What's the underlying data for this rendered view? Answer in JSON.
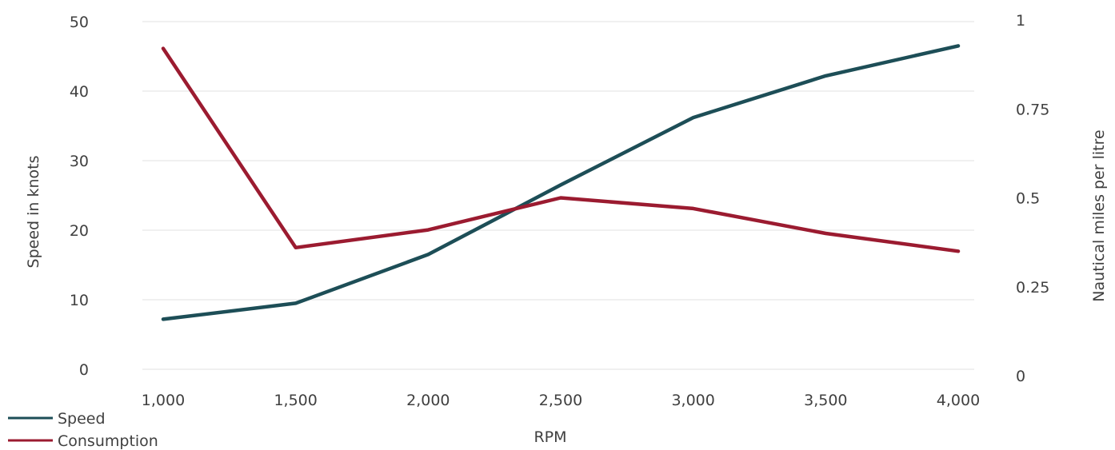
{
  "chart_data": {
    "type": "line",
    "categories": [
      "1,000",
      "1,500",
      "2,000",
      "2,500",
      "3,000",
      "3,500",
      "4,000"
    ],
    "xlabel": "RPM",
    "ylabel": "Speed in knots",
    "ylabel_right": "Nautical miles per litre",
    "ylim": [
      0,
      50
    ],
    "yticks": [
      "0",
      "10",
      "20",
      "30",
      "40",
      "50"
    ],
    "ylim_right": [
      0,
      1
    ],
    "yticks_right": [
      "0",
      "0.25",
      "0.5",
      "0.75",
      "1"
    ],
    "grid": true,
    "legend_position": "bottom-left",
    "series": [
      {
        "name": "Speed",
        "axis": "left",
        "color": "#1d4e57",
        "values": [
          7.2,
          9.5,
          16.5,
          26.5,
          36.2,
          42.2,
          46.5
        ]
      },
      {
        "name": "Consumption",
        "axis": "right",
        "color": "#9b1b30",
        "values": [
          0.92,
          0.36,
          0.41,
          0.5,
          0.47,
          0.4,
          0.35
        ]
      }
    ]
  }
}
